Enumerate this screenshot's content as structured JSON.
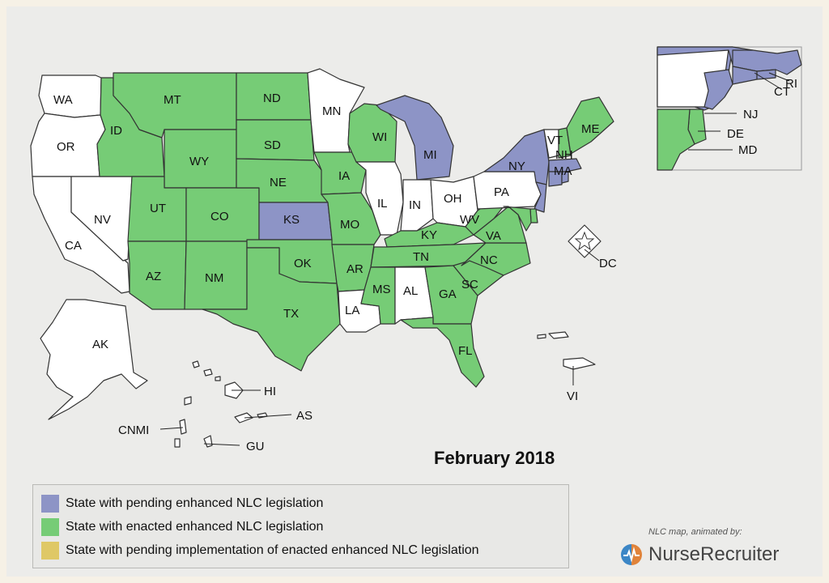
{
  "colors": {
    "pending": "#8d94c6",
    "enacted": "#76cc76",
    "implementation": "#dfc866",
    "none": "#ffffff"
  },
  "states": {
    "WA": "none",
    "OR": "none",
    "CA": "none",
    "NV": "none",
    "AK": "none",
    "ID": "enacted",
    "MT": "enacted",
    "WY": "enacted",
    "UT": "enacted",
    "CO": "enacted",
    "AZ": "enacted",
    "NM": "enacted",
    "ND": "enacted",
    "SD": "enacted",
    "NE": "enacted",
    "KS": "pending",
    "OK": "enacted",
    "TX": "enacted",
    "MN": "none",
    "IA": "enacted",
    "MO": "enacted",
    "AR": "enacted",
    "LA": "none",
    "WI": "enacted",
    "IL": "none",
    "MI": "pending",
    "IN": "none",
    "OH": "none",
    "KY": "enacted",
    "TN": "enacted",
    "MS": "enacted",
    "AL": "none",
    "GA": "enacted",
    "FL": "enacted",
    "SC": "enacted",
    "NC": "enacted",
    "VA": "enacted",
    "WV": "enacted",
    "PA": "none",
    "NY": "pending",
    "VT": "none",
    "NH": "enacted",
    "ME": "enacted",
    "MA": "pending",
    "RI": "pending",
    "CT": "pending",
    "NJ": "pending",
    "DE": "enacted",
    "MD": "enacted",
    "DC": "none",
    "HI": "none",
    "AS": "none",
    "CNMI": "none",
    "GU": "none",
    "VI": "none"
  },
  "labels": {
    "WA": "WA",
    "OR": "OR",
    "CA": "CA",
    "NV": "NV",
    "AK": "AK",
    "ID": "ID",
    "MT": "MT",
    "WY": "WY",
    "UT": "UT",
    "CO": "CO",
    "AZ": "AZ",
    "NM": "NM",
    "ND": "ND",
    "SD": "SD",
    "NE": "NE",
    "KS": "KS",
    "OK": "OK",
    "TX": "TX",
    "MN": "MN",
    "IA": "IA",
    "MO": "MO",
    "AR": "AR",
    "LA": "LA",
    "WI": "WI",
    "IL": "IL",
    "MI": "MI",
    "IN": "IN",
    "OH": "OH",
    "KY": "KY",
    "TN": "TN",
    "MS": "MS",
    "AL": "AL",
    "GA": "GA",
    "FL": "FL",
    "SC": "SC",
    "NC": "NC",
    "VA": "VA",
    "WV": "WV",
    "PA": "PA",
    "NY": "NY",
    "VT": "VT",
    "NH": "NH",
    "ME": "ME",
    "MA": "MA",
    "RI": "RI",
    "CT": "CT",
    "NJ": "NJ",
    "DE": "DE",
    "MD": "MD",
    "DC": "DC",
    "HI": "HI",
    "AS": "AS",
    "CNMI": "CNMI",
    "GU": "GU",
    "VI": "VI"
  },
  "date_label": "February 2018",
  "legend": [
    {
      "key": "pending",
      "label": "State with pending enhanced NLC legislation"
    },
    {
      "key": "enacted",
      "label": "State with enacted enhanced NLC legislation"
    },
    {
      "key": "implementation",
      "label": "State with pending implementation of enacted enhanced NLC legislation"
    }
  ],
  "credit": "NLC map, animated by:",
  "brand": "NurseRecruiter",
  "brand_colors": {
    "left": "#3b86c6",
    "right": "#e0833a"
  }
}
